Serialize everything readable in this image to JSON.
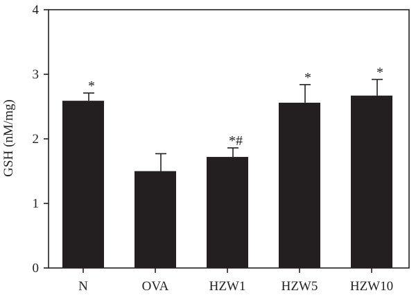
{
  "chart_data": {
    "type": "bar",
    "title": "",
    "xlabel": "",
    "ylabel": "GSH (nM/mg)",
    "ylim": [
      0,
      4
    ],
    "yticks": [
      0,
      1,
      2,
      3,
      4
    ],
    "grid": false,
    "categories": [
      "N",
      "OVA",
      "HZW1",
      "HZW5",
      "HZW10"
    ],
    "values": [
      2.59,
      1.5,
      1.72,
      2.56,
      2.67
    ],
    "errors": [
      0.12,
      0.27,
      0.14,
      0.28,
      0.25
    ],
    "significance": [
      "*",
      "",
      "*#",
      "*",
      "*"
    ],
    "colors": {
      "bar": "#231f20",
      "axis": "#231f20",
      "text": "#231f20"
    }
  }
}
